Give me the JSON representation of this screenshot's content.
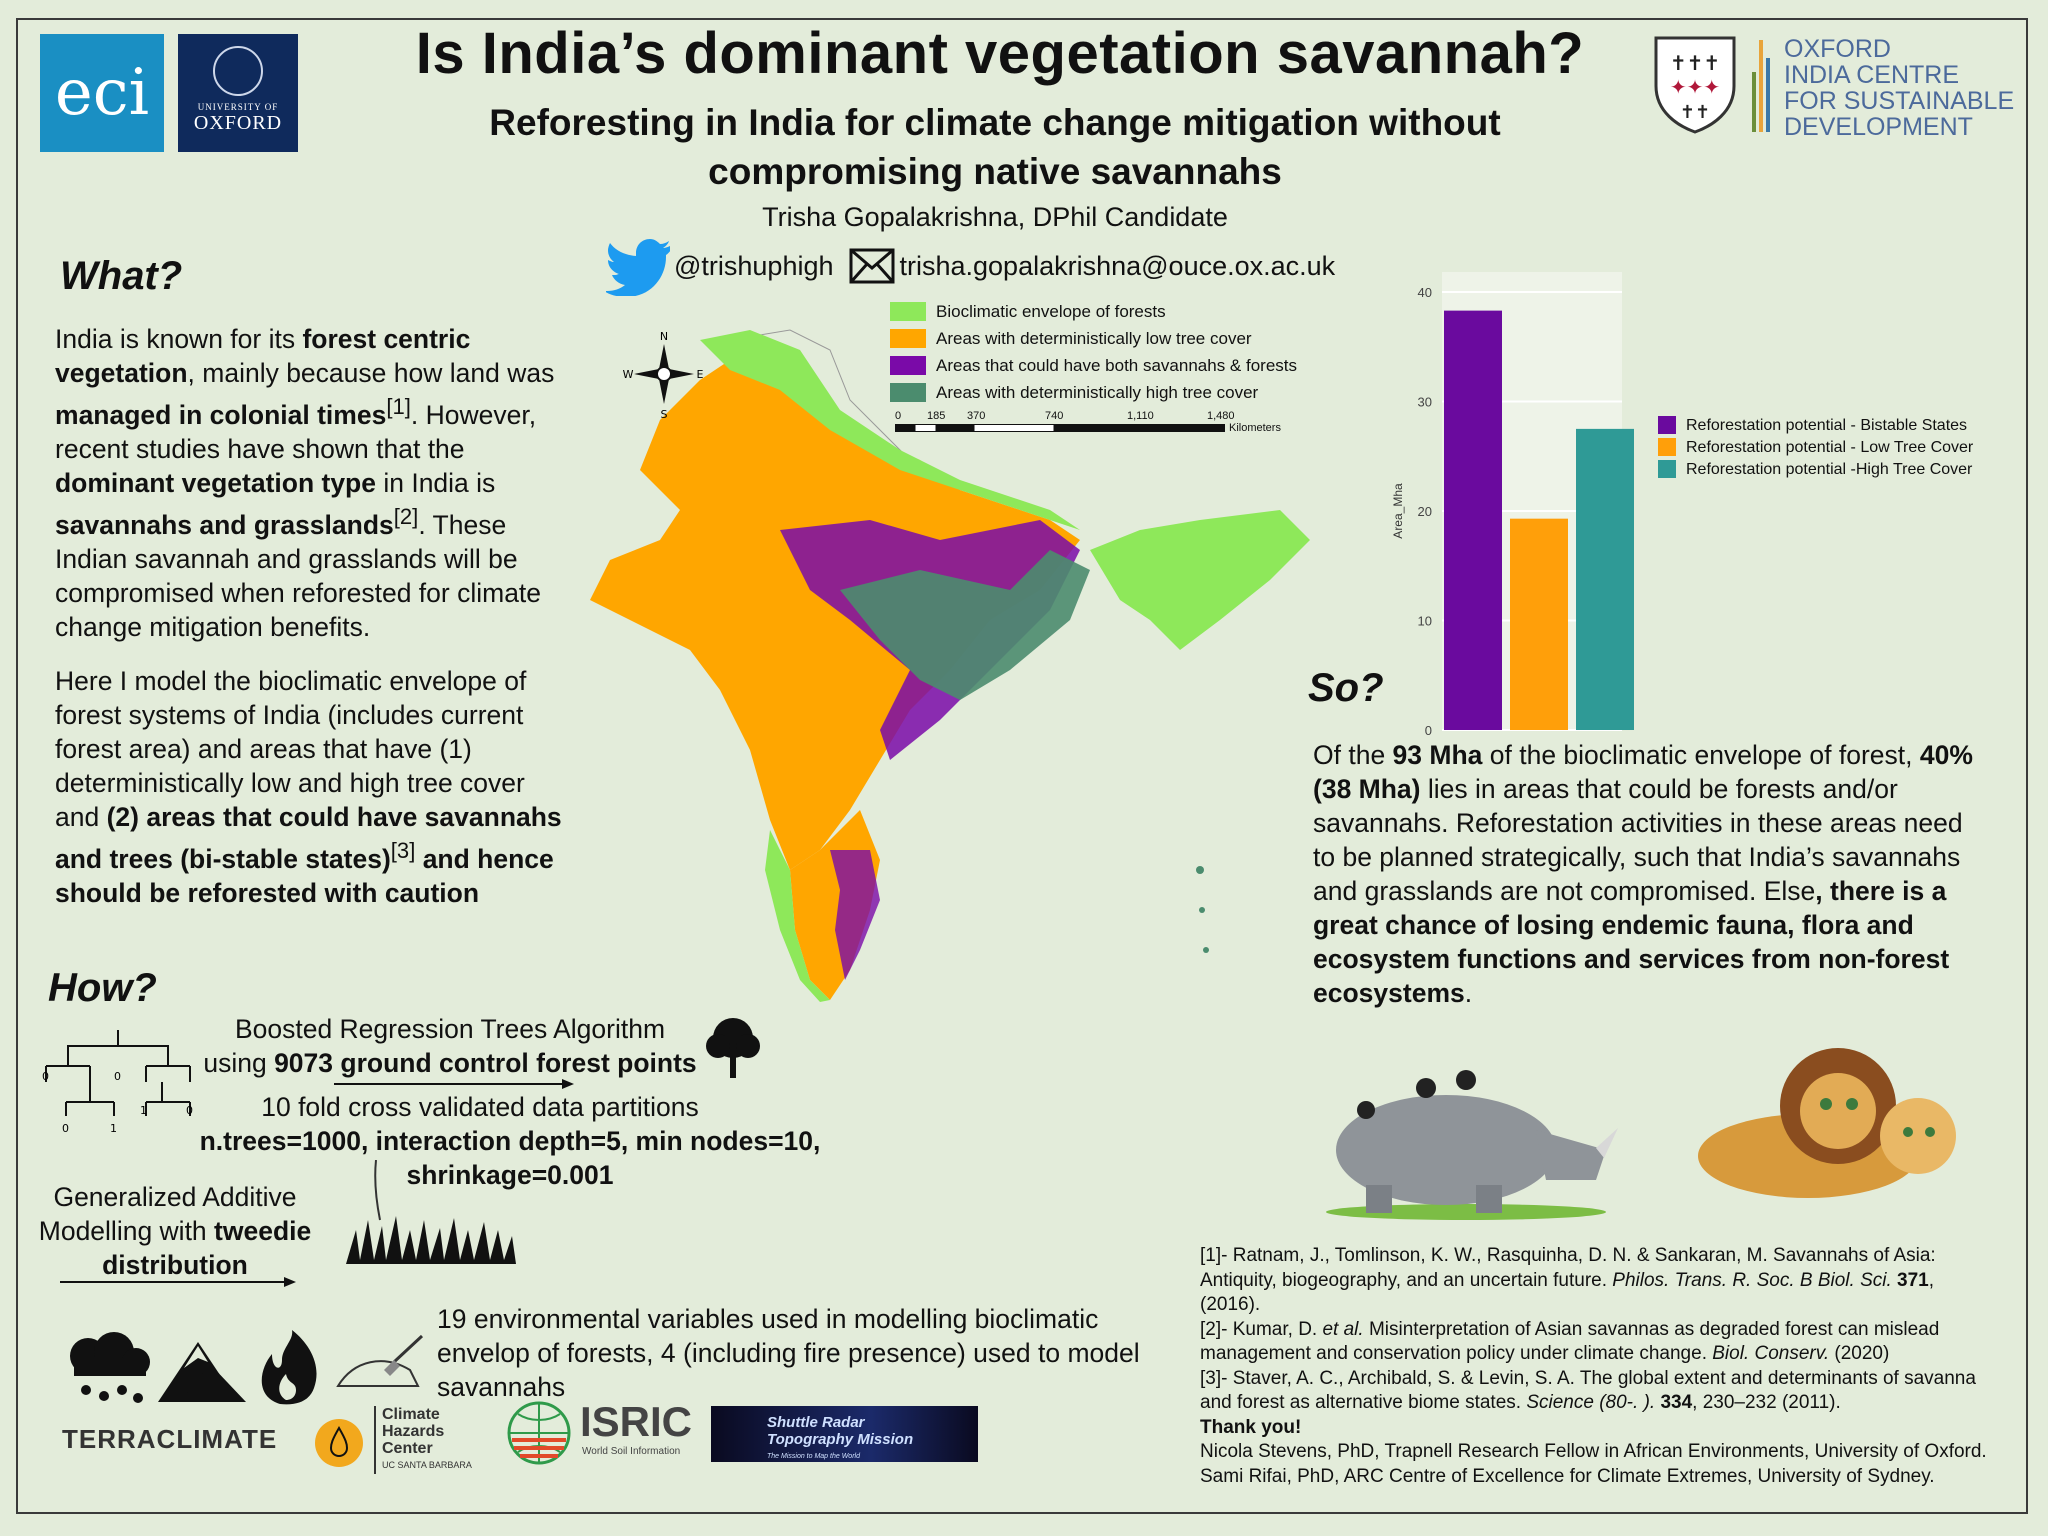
{
  "header": {
    "eci_logo": "eci",
    "oxford_logo_small": "UNIVERSITY OF",
    "oxford_logo_big": "OXFORD",
    "title": "Is India’s dominant vegetation savannah?",
    "subtitle": "Reforesting in India for climate change mitigation without compromising native savannahs",
    "author": "Trisha Gopalakrishna, DPhil Candidate",
    "twitter": "@trishuphigh",
    "email": "trisha.gopalakrishna@ouce.ox.ac.uk",
    "iccsd_lines": [
      "OXFORD",
      "INDIA CENTRE",
      "FOR SUSTAINABLE",
      "DEVELOPMENT"
    ]
  },
  "what": {
    "heading": "What?",
    "p1": [
      {
        "t": "India is known for its "
      },
      {
        "t": "forest centric vegetation",
        "b": true
      },
      {
        "t": ", mainly because how land was "
      },
      {
        "t": "managed in colonial times",
        "b": true
      },
      {
        "t": "[1]",
        "sup": true
      },
      {
        "t": ". However, recent studies have shown that the "
      },
      {
        "t": "dominant vegetation type",
        "b": true
      },
      {
        "t": " in India is "
      },
      {
        "t": "savannahs and grasslands",
        "b": true
      },
      {
        "t": "[2]",
        "sup": true
      },
      {
        "t": ". These Indian savannah and grasslands will be compromised when reforested for climate change mitigation benefits."
      }
    ],
    "p2": [
      {
        "t": "Here I model the bioclimatic envelope of forest systems of India (includes current forest area) and areas that have (1) deterministically low and high tree cover and "
      },
      {
        "t": "(2) areas that could have savannahs and trees (bi-stable states)",
        "b": true
      },
      {
        "t": "[3]",
        "sup": true
      },
      {
        "t": " and hence should be reforested with caution",
        "b": true
      }
    ]
  },
  "map": {
    "legend": [
      {
        "label": "Bioclimatic envelope of forests",
        "color": "#8ee85a"
      },
      {
        "label": "Areas with deterministically low tree cover",
        "color": "#ffa600"
      },
      {
        "label": "Areas that could have both savannahs & forests",
        "color": "#7a0aa8"
      },
      {
        "label": "Areas with deterministically high tree cover",
        "color": "#4b8c6e"
      }
    ],
    "scale_ticks": [
      "0",
      "185",
      "370",
      "740",
      "1,110",
      "1,480"
    ],
    "scale_unit": "Kilometers",
    "compass": {
      "n": "N",
      "s": "S",
      "e": "E",
      "w": "W"
    }
  },
  "chart_data": {
    "type": "bar",
    "categories": [
      "Reforestation potential - Bistable States",
      "Reforestation potential - Low Tree Cover",
      "Reforestation potential -High Tree Cover"
    ],
    "values": [
      38.3,
      19.3,
      27.5
    ],
    "colors": [
      "#6a0a9e",
      "#ff9f0a",
      "#2f9a96"
    ],
    "ylabel": "Area_Mha",
    "xlabel": "",
    "ylim": [
      0,
      40
    ],
    "yticks": [
      "0",
      "10",
      "20",
      "30",
      "40"
    ],
    "grid": true,
    "legend_position": "right"
  },
  "so": {
    "heading": "So?",
    "p": [
      {
        "t": "Of the "
      },
      {
        "t": "93 Mha",
        "b": true
      },
      {
        "t": " of the bioclimatic envelope of forest, "
      },
      {
        "t": "40% (38 Mha)",
        "b": true
      },
      {
        "t": " lies in areas that could be forests and/or savannahs. Reforestation activities in these areas need to be planned strategically, such that India’s savannahs and grasslands are not compromised. Else"
      },
      {
        "t": ", there is a great chance of losing endemic fauna, flora and ecosystem functions and services from non-forest ecosystems",
        "b": true
      },
      {
        "t": "."
      }
    ]
  },
  "how": {
    "heading": "How?",
    "brt_line1": "Boosted Regression Trees Algorithm",
    "brt_line2_pre": "using ",
    "brt_line2_bold": "9073 ground control forest points",
    "cv": "10 fold cross validated data partitions",
    "params1": "n.trees=1000, interaction depth=5, min nodes=10,",
    "params2": "shrinkage=0.001",
    "gam1": "Generalized Additive",
    "gam2_pre": "Modelling with ",
    "gam2_bold": "tweedie",
    "gam3": "distribution",
    "vars": "19 environmental variables used in modelling bioclimatic envelop of forests, 4 (including fire presence) used to model savannahs",
    "tree_labels": [
      "0",
      "0",
      "1",
      "0",
      "0",
      "1"
    ]
  },
  "sources": {
    "terraclimate": "TERRACLIMATE",
    "chc": [
      "Climate",
      "Hazards",
      "Center"
    ],
    "chc_sub": "UC SANTA BARBARA",
    "isric": "ISRIC",
    "isric_sub": "World Soil Information",
    "srtm_line1": "Shuttle Radar",
    "srtm_line2": "Topography Mission",
    "srtm_sub": "The Mission to Map the World"
  },
  "refs": [
    [
      {
        "t": "[1]- Ratnam, J., Tomlinson, K. W., Rasquinha, D. N. & Sankaran, M. Savannahs of Asia: Antiquity, biogeography, and an uncertain future. "
      },
      {
        "t": "Philos. Trans. R. Soc. B Biol. Sci.",
        "i": true
      },
      {
        "t": " "
      },
      {
        "t": "371",
        "b": true
      },
      {
        "t": ", (2016)."
      }
    ],
    [
      {
        "t": "[2]- Kumar, D. "
      },
      {
        "t": "et al.",
        "i": true
      },
      {
        "t": " Misinterpretation of Asian savannas as degraded forest can mislead management and conservation policy under climate change. "
      },
      {
        "t": "Biol. Conserv.",
        "i": true
      },
      {
        "t": " (2020)"
      }
    ],
    [
      {
        "t": "[3]- Staver, A. C., Archibald, S. & Levin, S. A. The global extent and determinants of savanna and forest as alternative biome states. "
      },
      {
        "t": "Science (80-. ).",
        "i": true
      },
      {
        "t": " "
      },
      {
        "t": "334",
        "b": true
      },
      {
        "t": ", 230–232 (2011)."
      }
    ],
    [
      {
        "t": "Thank you!",
        "b": true
      }
    ],
    [
      {
        "t": "Nicola Stevens, PhD, Trapnell Research Fellow in African Environments, University of Oxford."
      }
    ],
    [
      {
        "t": "Sami Rifai, PhD, ARC Centre of Excellence for Climate Extremes, University of Sydney."
      }
    ]
  ]
}
